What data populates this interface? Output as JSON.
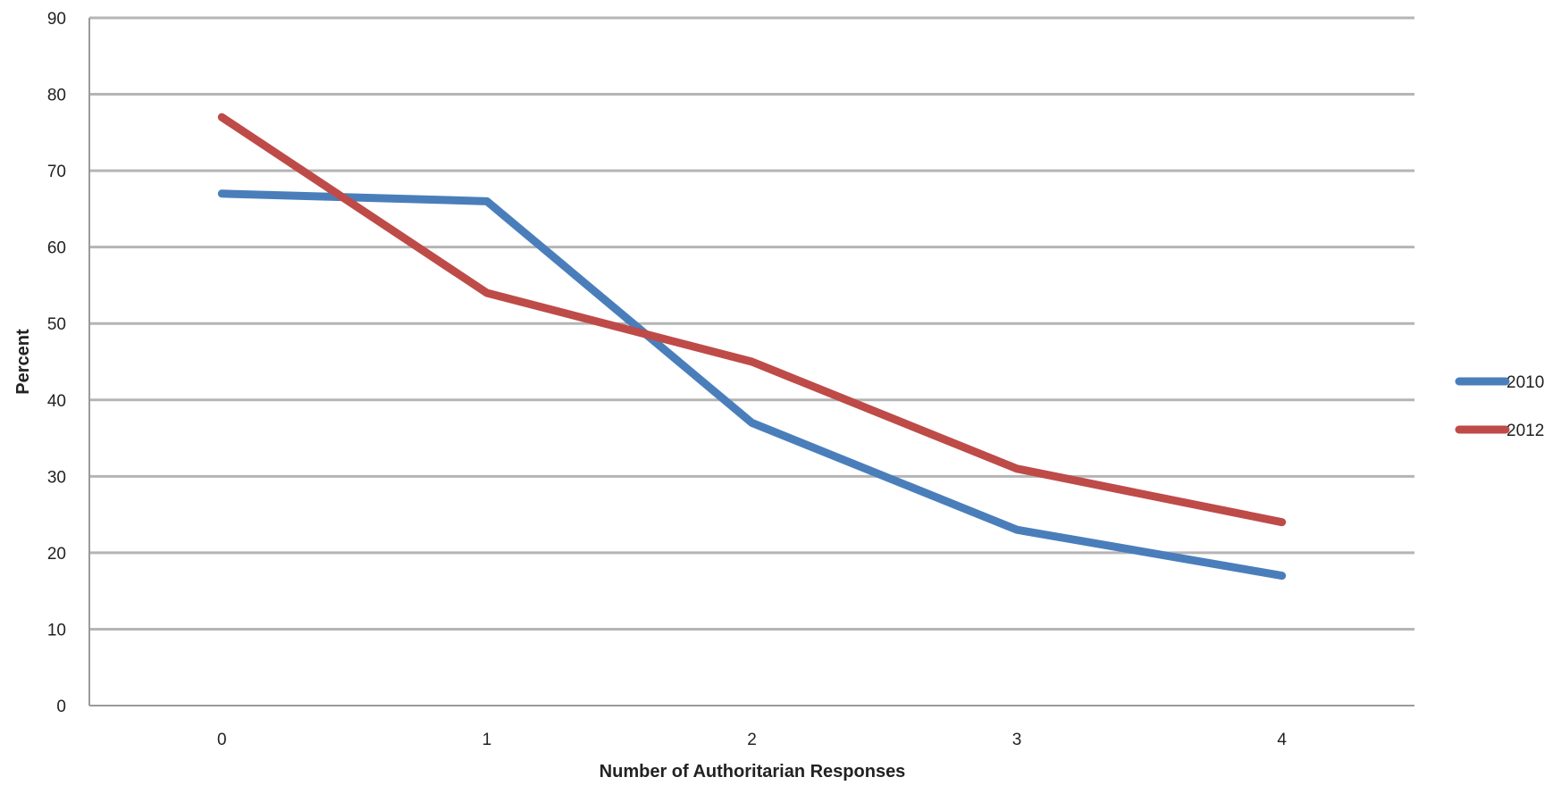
{
  "chart_data": {
    "type": "line",
    "title": "",
    "xlabel": "Number of Authoritarian Responses",
    "ylabel": "Percent",
    "categories": [
      "0",
      "1",
      "2",
      "3",
      "4"
    ],
    "ylim": [
      0,
      90
    ],
    "yticks": [
      0,
      10,
      20,
      30,
      40,
      50,
      60,
      70,
      80,
      90
    ],
    "grid": true,
    "legend_position": "right",
    "series": [
      {
        "name": "2010",
        "color": "#4a7ebb",
        "values": [
          67,
          66,
          37,
          23,
          17
        ]
      },
      {
        "name": "2012",
        "color": "#be4b48",
        "values": [
          77,
          54,
          45,
          31,
          24
        ]
      }
    ]
  }
}
